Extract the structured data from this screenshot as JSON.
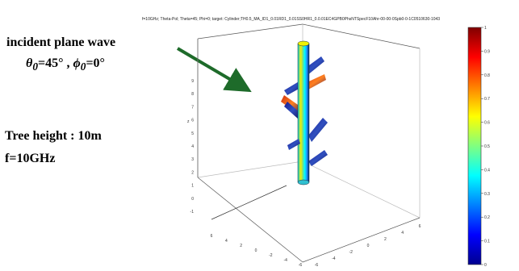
{
  "annotation": {
    "incident": "incident plane wave",
    "theta_symbol": "θ",
    "theta_sub": "0",
    "theta_value": "=45°",
    "separator": " , ",
    "phi_symbol": "ϕ",
    "phi_sub": "0",
    "phi_value": "=0°",
    "tree_height": "Tree height : 10m",
    "frequency": "f=10GHz"
  },
  "plot": {
    "title": "f=10GHz; Theta-Pol; Theta=45; Phi=0; target: Cylinder;TH0.5_MA_ID1_0.01RD1_0.01SS0HR1_0.0.01EC4GPB0PhsNTSpecF10Ahr-00-00-0Spb0-0-1C0510630-1043",
    "z_axis_label": "z",
    "z_ticks": [
      "9",
      "8",
      "7",
      "6",
      "5",
      "4",
      "3",
      "2",
      "1",
      "0",
      "-1"
    ],
    "x_ticks": [
      "6",
      "4",
      "2",
      "0",
      "-2",
      "-4",
      "-6"
    ],
    "y_ticks": [
      "-6",
      "-4",
      "-2",
      "0",
      "2",
      "4",
      "6"
    ]
  },
  "colorbar": {
    "ticks": [
      "1",
      "0.9",
      "0.8",
      "0.7",
      "0.6",
      "0.5",
      "0.4",
      "0.3",
      "0.2",
      "0.1",
      "0"
    ],
    "colormap": [
      "#00008f",
      "#0000ff",
      "#0080ff",
      "#00ffff",
      "#80ff80",
      "#ffff00",
      "#ff8000",
      "#ff0000",
      "#800000"
    ]
  },
  "arrow_color": "#1e6b2a"
}
